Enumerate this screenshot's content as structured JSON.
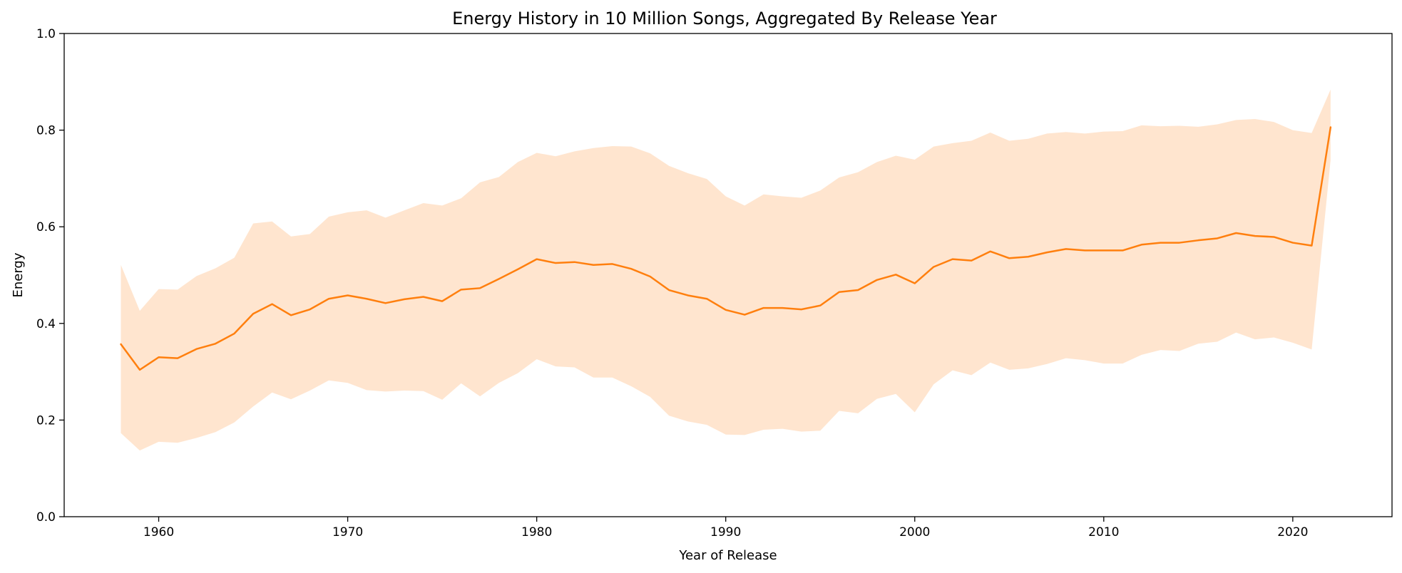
{
  "chart_data": {
    "type": "line",
    "title": "Energy History in 10 Million Songs, Aggregated By Release Year",
    "xlabel": "Year of Release",
    "ylabel": "Energy",
    "xlim": [
      1954.8,
      1925.2
    ],
    "ylim": [
      0.0,
      1.0
    ],
    "xticks": [
      1960,
      1970,
      1980,
      1990,
      2000,
      2010,
      2020
    ],
    "yticks": [
      0.0,
      0.2,
      0.4,
      0.6,
      0.8,
      1.0
    ],
    "ytick_labels": [
      "0.0",
      "0.2",
      "0.4",
      "0.6",
      "0.8",
      "1.0"
    ],
    "grid": false,
    "legend": "none",
    "colors": {
      "line": "#ff7f0e",
      "band": "#ff7f0e"
    },
    "series": [
      {
        "x": [
          1958,
          1959,
          1960,
          1961,
          1962,
          1963,
          1964,
          1965,
          1966,
          1967,
          1968,
          1969,
          1970,
          1971,
          1972,
          1973,
          1974,
          1975,
          1976,
          1977,
          1978,
          1979,
          1980,
          1981,
          1982,
          1983,
          1984,
          1985,
          1986,
          1987,
          1988,
          1989,
          1990,
          1991,
          1992,
          1993,
          1994,
          1995,
          1996,
          1997,
          1998,
          1999,
          2000,
          2001,
          2002,
          2003,
          2004,
          2005,
          2006,
          2007,
          2008,
          2009,
          2010,
          2011,
          2012,
          2013,
          2014,
          2015,
          2016,
          2017,
          2018,
          2019,
          2020,
          2021,
          2022
        ],
        "y": [
          0.357,
          0.304,
          0.33,
          0.328,
          0.347,
          0.358,
          0.379,
          0.42,
          0.44,
          0.417,
          0.429,
          0.451,
          0.458,
          0.451,
          0.442,
          0.45,
          0.455,
          0.446,
          0.47,
          0.473,
          0.492,
          0.512,
          0.533,
          0.525,
          0.527,
          0.521,
          0.523,
          0.513,
          0.497,
          0.469,
          0.458,
          0.451,
          0.428,
          0.418,
          0.432,
          0.432,
          0.429,
          0.437,
          0.465,
          0.469,
          0.49,
          0.501,
          0.483,
          0.517,
          0.533,
          0.53,
          0.549,
          0.535,
          0.538,
          0.547,
          0.554,
          0.551,
          0.551,
          0.551,
          0.563,
          0.567,
          0.567,
          0.572,
          0.576,
          0.587,
          0.581,
          0.579,
          0.567,
          0.561,
          0.806
        ],
        "lower": [
          0.173,
          0.137,
          0.155,
          0.153,
          0.163,
          0.175,
          0.195,
          0.228,
          0.257,
          0.243,
          0.261,
          0.282,
          0.277,
          0.262,
          0.259,
          0.261,
          0.26,
          0.242,
          0.276,
          0.249,
          0.277,
          0.297,
          0.326,
          0.311,
          0.309,
          0.288,
          0.288,
          0.27,
          0.248,
          0.209,
          0.197,
          0.19,
          0.17,
          0.169,
          0.18,
          0.182,
          0.176,
          0.178,
          0.219,
          0.214,
          0.244,
          0.254,
          0.216,
          0.274,
          0.303,
          0.293,
          0.319,
          0.304,
          0.307,
          0.316,
          0.328,
          0.324,
          0.317,
          0.317,
          0.335,
          0.345,
          0.343,
          0.358,
          0.362,
          0.381,
          0.367,
          0.371,
          0.36,
          0.346,
          0.738
        ],
        "upper": [
          0.521,
          0.426,
          0.471,
          0.47,
          0.498,
          0.514,
          0.536,
          0.607,
          0.611,
          0.58,
          0.585,
          0.621,
          0.63,
          0.634,
          0.619,
          0.634,
          0.649,
          0.644,
          0.659,
          0.692,
          0.703,
          0.734,
          0.753,
          0.746,
          0.756,
          0.763,
          0.767,
          0.766,
          0.752,
          0.726,
          0.711,
          0.699,
          0.663,
          0.644,
          0.667,
          0.663,
          0.66,
          0.675,
          0.702,
          0.713,
          0.734,
          0.747,
          0.739,
          0.766,
          0.773,
          0.778,
          0.795,
          0.778,
          0.782,
          0.793,
          0.796,
          0.793,
          0.797,
          0.798,
          0.81,
          0.808,
          0.809,
          0.807,
          0.812,
          0.821,
          0.823,
          0.817,
          0.8,
          0.794,
          0.884
        ]
      }
    ]
  }
}
